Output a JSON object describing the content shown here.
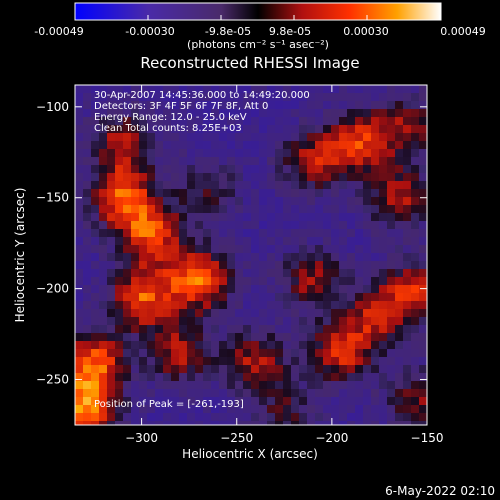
{
  "colorbar": {
    "ticks": [
      "-0.00049",
      "-0.00030",
      "-9.8e-05",
      "9.8e-05",
      "0.00030",
      "0.00049"
    ],
    "unit_label": "(photons cm⁻² s⁻¹ asec⁻²)",
    "range": [
      -0.00049,
      0.00049
    ]
  },
  "chart_data": {
    "type": "heatmap",
    "title": "Reconstructed RHESSI Image",
    "xlabel": "Heliocentric X (arcsec)",
    "ylabel": "Heliocentric Y (arcsec)",
    "xlim": [
      -335,
      -150
    ],
    "ylim": [
      -275,
      -88
    ],
    "x_ticks": [
      -300,
      -250,
      -200,
      -150
    ],
    "y_ticks": [
      -100,
      -150,
      -200,
      -250
    ],
    "annotations": [
      "30-Apr-2007 14:45:36.000 to 14:49:20.000",
      "Detectors: 3F 4F 5F 6F 7F 8F, Att 0",
      "Energy Range: 12.0 - 25.0 keV",
      "Clean     Total counts: 8.25E+03"
    ],
    "peak_label": "Position of Peak = [-261,-193]",
    "peak": {
      "x": -261,
      "y": -193
    },
    "sources": [
      {
        "x": -310,
        "y": -150,
        "level": 0.0004
      },
      {
        "x": -295,
        "y": -170,
        "level": 0.00038
      },
      {
        "x": -270,
        "y": -195,
        "level": 0.00045
      },
      {
        "x": -300,
        "y": -205,
        "level": 0.0004
      },
      {
        "x": -325,
        "y": -240,
        "level": 0.0004
      },
      {
        "x": -330,
        "y": -265,
        "level": 0.00048
      },
      {
        "x": -280,
        "y": -235,
        "level": 0.0003
      },
      {
        "x": -310,
        "y": -120,
        "level": 0.0003
      },
      {
        "x": -265,
        "y": -145,
        "level": 0.0002
      },
      {
        "x": -210,
        "y": -130,
        "level": 0.0003
      },
      {
        "x": -185,
        "y": -120,
        "level": 0.00035
      },
      {
        "x": -165,
        "y": -150,
        "level": 0.0003
      },
      {
        "x": -155,
        "y": -200,
        "level": 0.00032
      },
      {
        "x": -175,
        "y": -215,
        "level": 0.0003
      },
      {
        "x": -210,
        "y": -195,
        "level": 0.00028
      },
      {
        "x": -195,
        "y": -235,
        "level": 0.00035
      },
      {
        "x": -240,
        "y": -240,
        "level": 0.0003
      },
      {
        "x": -225,
        "y": -270,
        "level": 0.0002
      },
      {
        "x": -155,
        "y": -260,
        "level": 0.00025
      },
      {
        "x": -160,
        "y": -110,
        "level": 0.00025
      }
    ]
  },
  "footer": {
    "timestamp": "6-May-2022 02:10"
  }
}
